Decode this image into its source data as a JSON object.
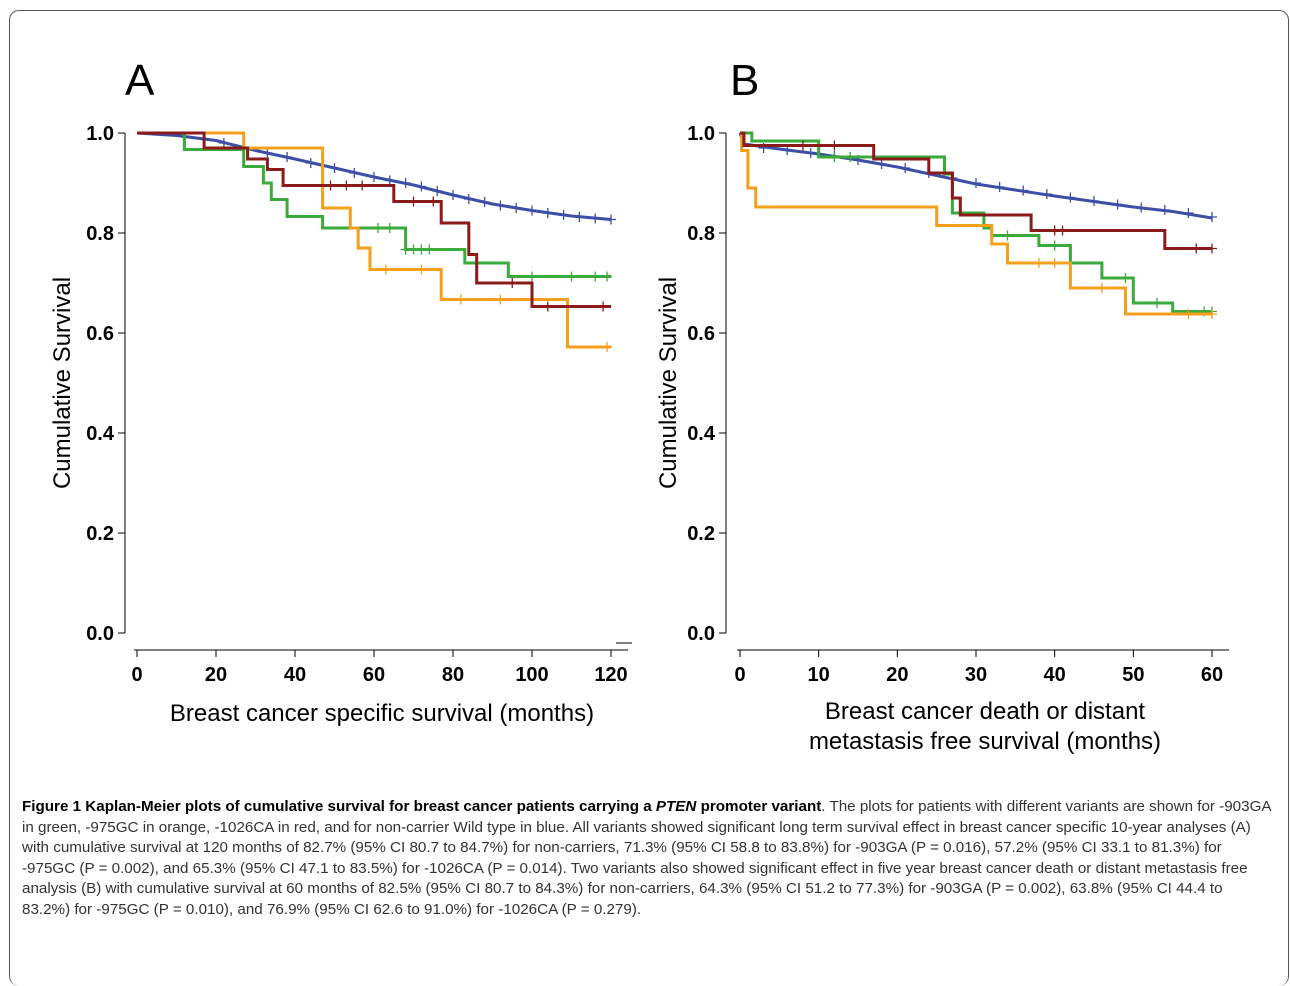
{
  "chart_data": [
    {
      "panel": "A",
      "type": "line",
      "xlabel": "Breast cancer specific survival (months)",
      "ylabel": "Cumulative Survival",
      "xlim": [
        0,
        120
      ],
      "ylim": [
        0.0,
        1.0
      ],
      "xticks": [
        "0",
        "20",
        "40",
        "60",
        "80",
        "100",
        "120"
      ],
      "yticks": [
        "0.0",
        "0.2",
        "0.4",
        "0.6",
        "0.8",
        "1.0"
      ],
      "xtick_values": [
        0,
        20,
        40,
        60,
        80,
        100,
        120
      ],
      "ytick_values": [
        0.0,
        0.2,
        0.4,
        0.6,
        0.8,
        1.0
      ],
      "series": [
        {
          "color": "#3c4fa6",
          "points": [
            [
              0,
              1.0
            ],
            [
              10,
              0.995
            ],
            [
              20,
              0.985
            ],
            [
              30,
              0.965
            ],
            [
              40,
              0.948
            ],
            [
              50,
              0.93
            ],
            [
              60,
              0.912
            ],
            [
              70,
              0.896
            ],
            [
              80,
              0.876
            ],
            [
              90,
              0.858
            ],
            [
              100,
              0.845
            ],
            [
              110,
              0.834
            ],
            [
              120,
              0.827
            ]
          ],
          "censor": [
            [
              22,
              0.98
            ],
            [
              27,
              0.97
            ],
            [
              33,
              0.96
            ],
            [
              38,
              0.952
            ],
            [
              44,
              0.94
            ],
            [
              50,
              0.93
            ],
            [
              55,
              0.92
            ],
            [
              60,
              0.912
            ],
            [
              64,
              0.905
            ],
            [
              68,
              0.9
            ],
            [
              72,
              0.893
            ],
            [
              76,
              0.884
            ],
            [
              80,
              0.876
            ],
            [
              84,
              0.868
            ],
            [
              88,
              0.862
            ],
            [
              92,
              0.855
            ],
            [
              96,
              0.85
            ],
            [
              100,
              0.845
            ],
            [
              104,
              0.84
            ],
            [
              108,
              0.836
            ],
            [
              112,
              0.832
            ],
            [
              116,
              0.829
            ],
            [
              120,
              0.827
            ]
          ]
        },
        {
          "color": "#3aab3a",
          "points": [
            [
              0,
              1.0
            ],
            [
              12,
              1.0
            ],
            [
              12,
              0.967
            ],
            [
              27,
              0.967
            ],
            [
              27,
              0.933
            ],
            [
              32,
              0.933
            ],
            [
              32,
              0.9
            ],
            [
              34,
              0.9
            ],
            [
              34,
              0.867
            ],
            [
              38,
              0.867
            ],
            [
              38,
              0.833
            ],
            [
              47,
              0.833
            ],
            [
              47,
              0.81
            ],
            [
              57,
              0.81
            ],
            [
              57,
              0.81
            ],
            [
              68,
              0.81
            ],
            [
              68,
              0.767
            ],
            [
              83,
              0.767
            ],
            [
              83,
              0.74
            ],
            [
              94,
              0.74
            ],
            [
              94,
              0.713
            ],
            [
              120,
              0.713
            ]
          ],
          "censor": [
            [
              68,
              0.767
            ],
            [
              70,
              0.767
            ],
            [
              72,
              0.767
            ],
            [
              74,
              0.767
            ],
            [
              61,
              0.81
            ],
            [
              64,
              0.81
            ],
            [
              100,
              0.713
            ],
            [
              110,
              0.713
            ],
            [
              116,
              0.713
            ],
            [
              119,
              0.713
            ]
          ]
        },
        {
          "color": "#f5a01d",
          "points": [
            [
              0,
              1.0
            ],
            [
              27,
              1.0
            ],
            [
              27,
              0.97
            ],
            [
              47,
              0.97
            ],
            [
              47,
              0.85
            ],
            [
              54,
              0.85
            ],
            [
              54,
              0.81
            ],
            [
              56,
              0.81
            ],
            [
              56,
              0.77
            ],
            [
              59,
              0.77
            ],
            [
              59,
              0.727
            ],
            [
              77,
              0.727
            ],
            [
              77,
              0.667
            ],
            [
              109,
              0.667
            ],
            [
              109,
              0.572
            ],
            [
              120,
              0.572
            ]
          ],
          "censor": [
            [
              63,
              0.727
            ],
            [
              72,
              0.727
            ],
            [
              82,
              0.667
            ],
            [
              92,
              0.667
            ],
            [
              119,
              0.572
            ]
          ]
        },
        {
          "color": "#8b1a1a",
          "points": [
            [
              0,
              1.0
            ],
            [
              17,
              1.0
            ],
            [
              17,
              0.97
            ],
            [
              28,
              0.97
            ],
            [
              28,
              0.948
            ],
            [
              33,
              0.948
            ],
            [
              33,
              0.927
            ],
            [
              37,
              0.927
            ],
            [
              37,
              0.895
            ],
            [
              65,
              0.895
            ],
            [
              65,
              0.863
            ],
            [
              77,
              0.863
            ],
            [
              77,
              0.82
            ],
            [
              84,
              0.82
            ],
            [
              84,
              0.757
            ],
            [
              86,
              0.757
            ],
            [
              86,
              0.7
            ],
            [
              100,
              0.7
            ],
            [
              100,
              0.653
            ],
            [
              120,
              0.653
            ]
          ],
          "censor": [
            [
              49,
              0.895
            ],
            [
              53,
              0.895
            ],
            [
              57,
              0.895
            ],
            [
              70,
              0.863
            ],
            [
              75,
              0.863
            ],
            [
              95,
              0.7
            ],
            [
              104,
              0.653
            ],
            [
              118,
              0.653
            ]
          ]
        }
      ]
    },
    {
      "panel": "B",
      "type": "line",
      "xlabel": "Breast cancer death or distant metastasis free survival (months)",
      "ylabel": "Cumulative Survival",
      "xlim": [
        0,
        60
      ],
      "ylim": [
        0.0,
        1.0
      ],
      "xticks": [
        "0",
        "10",
        "20",
        "30",
        "40",
        "50",
        "60"
      ],
      "yticks": [
        "0.0",
        "0.2",
        "0.4",
        "0.6",
        "0.8",
        "1.0"
      ],
      "xtick_values": [
        0,
        10,
        20,
        30,
        40,
        50,
        60
      ],
      "ytick_values": [
        0.0,
        0.2,
        0.4,
        0.6,
        0.8,
        1.0
      ],
      "series": [
        {
          "color": "#3c4fa6",
          "points": [
            [
              0,
              1.0
            ],
            [
              0.5,
              0.978
            ],
            [
              5,
              0.968
            ],
            [
              10,
              0.958
            ],
            [
              15,
              0.946
            ],
            [
              20,
              0.932
            ],
            [
              25,
              0.915
            ],
            [
              30,
              0.898
            ],
            [
              35,
              0.886
            ],
            [
              40,
              0.874
            ],
            [
              45,
              0.863
            ],
            [
              50,
              0.852
            ],
            [
              55,
              0.843
            ],
            [
              60,
              0.83
            ]
          ],
          "censor": [
            [
              3,
              0.97
            ],
            [
              6,
              0.966
            ],
            [
              9,
              0.96
            ],
            [
              12,
              0.954
            ],
            [
              15,
              0.946
            ],
            [
              18,
              0.938
            ],
            [
              21,
              0.93
            ],
            [
              24,
              0.92
            ],
            [
              27,
              0.91
            ],
            [
              30,
              0.9
            ],
            [
              33,
              0.892
            ],
            [
              36,
              0.885
            ],
            [
              39,
              0.878
            ],
            [
              42,
              0.871
            ],
            [
              45,
              0.864
            ],
            [
              48,
              0.857
            ],
            [
              51,
              0.851
            ],
            [
              54,
              0.846
            ],
            [
              57,
              0.84
            ],
            [
              60,
              0.832
            ]
          ]
        },
        {
          "color": "#3aab3a",
          "points": [
            [
              0,
              1.0
            ],
            [
              1.5,
              1.0
            ],
            [
              1.5,
              0.984
            ],
            [
              10,
              0.984
            ],
            [
              10,
              0.952
            ],
            [
              26,
              0.952
            ],
            [
              26,
              0.918
            ],
            [
              27,
              0.918
            ],
            [
              27,
              0.84
            ],
            [
              31,
              0.84
            ],
            [
              31,
              0.81
            ],
            [
              32,
              0.81
            ],
            [
              32,
              0.795
            ],
            [
              38,
              0.795
            ],
            [
              38,
              0.775
            ],
            [
              42,
              0.775
            ],
            [
              42,
              0.74
            ],
            [
              46,
              0.74
            ],
            [
              46,
              0.71
            ],
            [
              50,
              0.71
            ],
            [
              50,
              0.66
            ],
            [
              55,
              0.66
            ],
            [
              55,
              0.643
            ],
            [
              60,
              0.643
            ]
          ],
          "censor": [
            [
              12,
              0.952
            ],
            [
              14,
              0.952
            ],
            [
              34,
              0.795
            ],
            [
              40,
              0.775
            ],
            [
              49,
              0.71
            ],
            [
              53,
              0.66
            ],
            [
              59,
              0.643
            ],
            [
              60,
              0.643
            ]
          ]
        },
        {
          "color": "#f5a01d",
          "points": [
            [
              0,
              1.0
            ],
            [
              0.2,
              1.0
            ],
            [
              0.2,
              0.965
            ],
            [
              1,
              0.965
            ],
            [
              1,
              0.89
            ],
            [
              2,
              0.89
            ],
            [
              2,
              0.852
            ],
            [
              25,
              0.852
            ],
            [
              25,
              0.815
            ],
            [
              32,
              0.815
            ],
            [
              32,
              0.778
            ],
            [
              34,
              0.778
            ],
            [
              34,
              0.74
            ],
            [
              42,
              0.74
            ],
            [
              42,
              0.69
            ],
            [
              49,
              0.69
            ],
            [
              49,
              0.638
            ],
            [
              60,
              0.638
            ]
          ],
          "censor": [
            [
              38,
              0.74
            ],
            [
              40,
              0.74
            ],
            [
              46,
              0.69
            ],
            [
              57,
              0.638
            ],
            [
              60,
              0.638
            ]
          ]
        },
        {
          "color": "#8b1a1a",
          "points": [
            [
              0,
              1.0
            ],
            [
              0.5,
              1.0
            ],
            [
              0.5,
              0.975
            ],
            [
              17,
              0.975
            ],
            [
              17,
              0.948
            ],
            [
              24,
              0.948
            ],
            [
              24,
              0.92
            ],
            [
              27,
              0.92
            ],
            [
              27,
              0.87
            ],
            [
              28,
              0.87
            ],
            [
              28,
              0.836
            ],
            [
              37,
              0.836
            ],
            [
              37,
              0.805
            ],
            [
              54,
              0.805
            ],
            [
              54,
              0.769
            ],
            [
              60,
              0.769
            ]
          ],
          "censor": [
            [
              8,
              0.975
            ],
            [
              12,
              0.975
            ],
            [
              40,
              0.805
            ],
            [
              41,
              0.805
            ],
            [
              58,
              0.769
            ],
            [
              60,
              0.769
            ]
          ]
        }
      ]
    }
  ],
  "caption": {
    "label": "Figure 1 Kaplan-Meier plots of cumulative survival for breast cancer patients carrying a ",
    "gene": "PTEN",
    "label_end": " promoter variant",
    "body": ". The plots for patients with different variants are shown for -903GA in green, -975GC in orange, -1026CA in red, and for non-carrier Wild type in blue. All variants showed significant long term survival effect in breast cancer specific 10-year analyses (A) with cumulative survival at 120 months of 82.7% (95% CI 80.7 to 84.7%) for non-carriers, 71.3% (95% CI 58.8 to 83.8%) for -903GA (P = 0.016), 57.2% (95% CI 33.1 to 81.3%) for -975GC (P = 0.002), and 65.3% (95% CI 47.1 to 83.5%) for -1026CA (P = 0.014). Two variants also showed significant effect in five year breast cancer death or distant metastasis free analysis (B) with cumulative survival at 60 months of 82.5% (95% CI 80.7 to 84.3%) for non-carriers, 64.3% (95% CI 51.2 to 77.3%) for -903GA (P = 0.002), 63.8% (95% CI 44.4 to 83.2%) for -975GC (P = 0.010), and 76.9% (95% CI 62.6 to 91.0%) for -1026CA (P = 0.279)."
  }
}
